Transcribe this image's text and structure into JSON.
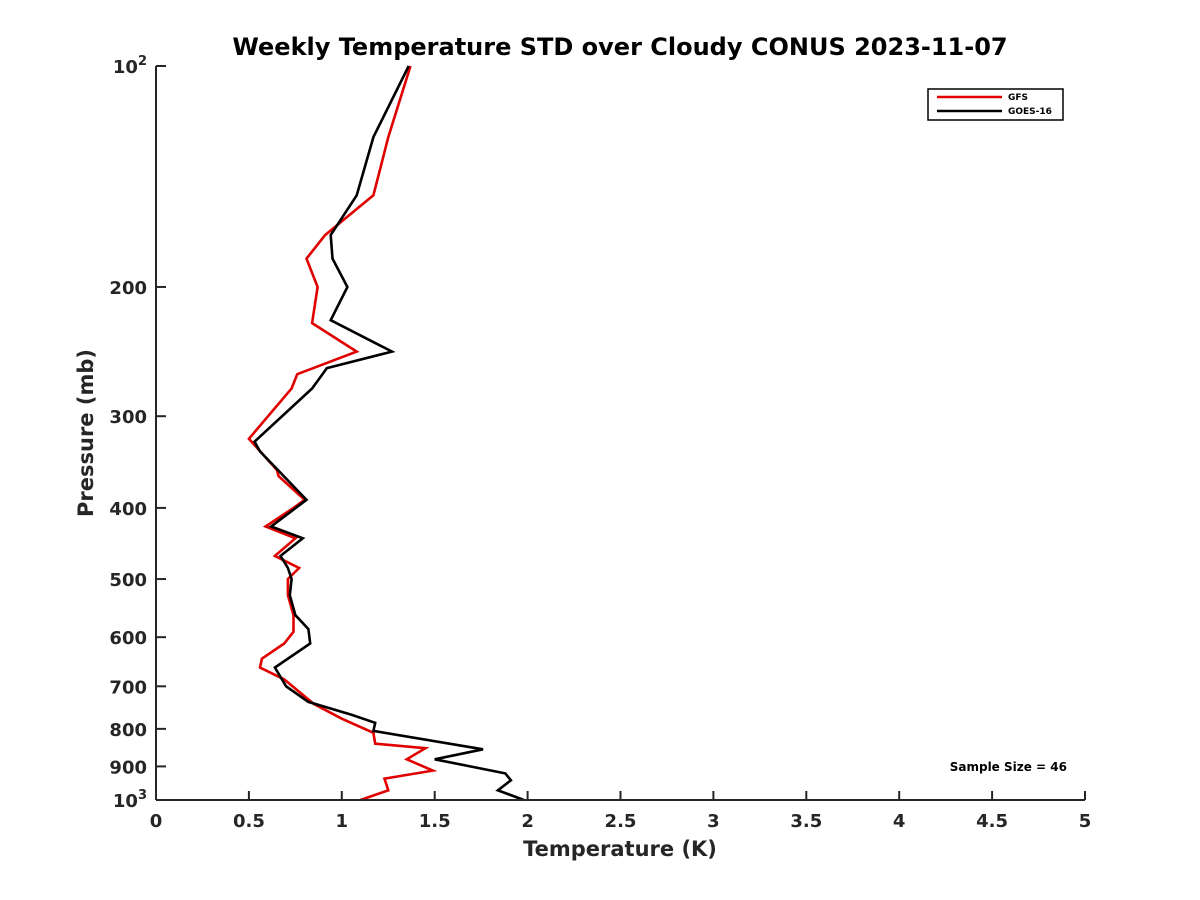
{
  "chart_data": {
    "type": "line",
    "title": "Weekly Temperature STD over Cloudy CONUS 2023-11-07",
    "xlabel": "Temperature (K)",
    "ylabel": "Pressure (mb)",
    "xlim": [
      0,
      5
    ],
    "ylim": [
      100,
      1000
    ],
    "y_scale": "log",
    "y_reversed": true,
    "grid": false,
    "legend_position": "top-right",
    "x_ticks": [
      "0",
      "0.5",
      "1",
      "1.5",
      "2",
      "2.5",
      "3",
      "3.5",
      "4",
      "4.5",
      "5"
    ],
    "y_ticks": [
      {
        "value": 100,
        "base": "10",
        "exp": "2"
      },
      {
        "value": 200,
        "label": "200"
      },
      {
        "value": 300,
        "label": "300"
      },
      {
        "value": 400,
        "label": "400"
      },
      {
        "value": 500,
        "label": "500"
      },
      {
        "value": 600,
        "label": "600"
      },
      {
        "value": 700,
        "label": "700"
      },
      {
        "value": 800,
        "label": "800"
      },
      {
        "value": 900,
        "label": "900"
      },
      {
        "value": 1000,
        "base": "10",
        "exp": "3"
      }
    ],
    "series": [
      {
        "name": "GFS",
        "color": "#e00000",
        "points": [
          [
            1.37,
            100
          ],
          [
            1.25,
            125
          ],
          [
            1.17,
            150
          ],
          [
            0.91,
            170
          ],
          [
            0.81,
            183
          ],
          [
            0.87,
            200
          ],
          [
            0.84,
            224
          ],
          [
            1.08,
            245
          ],
          [
            0.76,
            263
          ],
          [
            0.73,
            275
          ],
          [
            0.5,
            322
          ],
          [
            0.65,
            355
          ],
          [
            0.66,
            362
          ],
          [
            0.8,
            390
          ],
          [
            0.74,
            400
          ],
          [
            0.59,
            424
          ],
          [
            0.75,
            440
          ],
          [
            0.64,
            465
          ],
          [
            0.77,
            483
          ],
          [
            0.71,
            500
          ],
          [
            0.71,
            526
          ],
          [
            0.74,
            560
          ],
          [
            0.74,
            590
          ],
          [
            0.69,
            612
          ],
          [
            0.57,
            642
          ],
          [
            0.56,
            660
          ],
          [
            0.69,
            685
          ],
          [
            0.85,
            740
          ],
          [
            1.0,
            775
          ],
          [
            1.17,
            810
          ],
          [
            1.18,
            838
          ],
          [
            1.45,
            850
          ],
          [
            1.35,
            880
          ],
          [
            1.49,
            912
          ],
          [
            1.23,
            935
          ],
          [
            1.25,
            970
          ],
          [
            1.1,
            1000
          ]
        ]
      },
      {
        "name": "GOES-16",
        "color": "#000000",
        "points": [
          [
            1.36,
            100
          ],
          [
            1.17,
            125
          ],
          [
            1.08,
            150
          ],
          [
            0.94,
            170
          ],
          [
            0.95,
            183
          ],
          [
            1.03,
            200
          ],
          [
            0.94,
            222
          ],
          [
            1.27,
            245
          ],
          [
            0.92,
            258
          ],
          [
            0.84,
            275
          ],
          [
            0.53,
            325
          ],
          [
            0.56,
            335
          ],
          [
            0.81,
            390
          ],
          [
            0.62,
            424
          ],
          [
            0.79,
            440
          ],
          [
            0.67,
            465
          ],
          [
            0.71,
            483
          ],
          [
            0.73,
            500
          ],
          [
            0.72,
            526
          ],
          [
            0.75,
            560
          ],
          [
            0.82,
            585
          ],
          [
            0.83,
            612
          ],
          [
            0.64,
            660
          ],
          [
            0.7,
            700
          ],
          [
            0.82,
            735
          ],
          [
            1.05,
            765
          ],
          [
            1.18,
            785
          ],
          [
            1.17,
            805
          ],
          [
            1.76,
            853
          ],
          [
            1.5,
            880
          ],
          [
            1.88,
            920
          ],
          [
            1.91,
            940
          ],
          [
            1.84,
            970
          ],
          [
            1.98,
            1000
          ]
        ]
      }
    ],
    "annotation": "Sample Size = 46"
  }
}
